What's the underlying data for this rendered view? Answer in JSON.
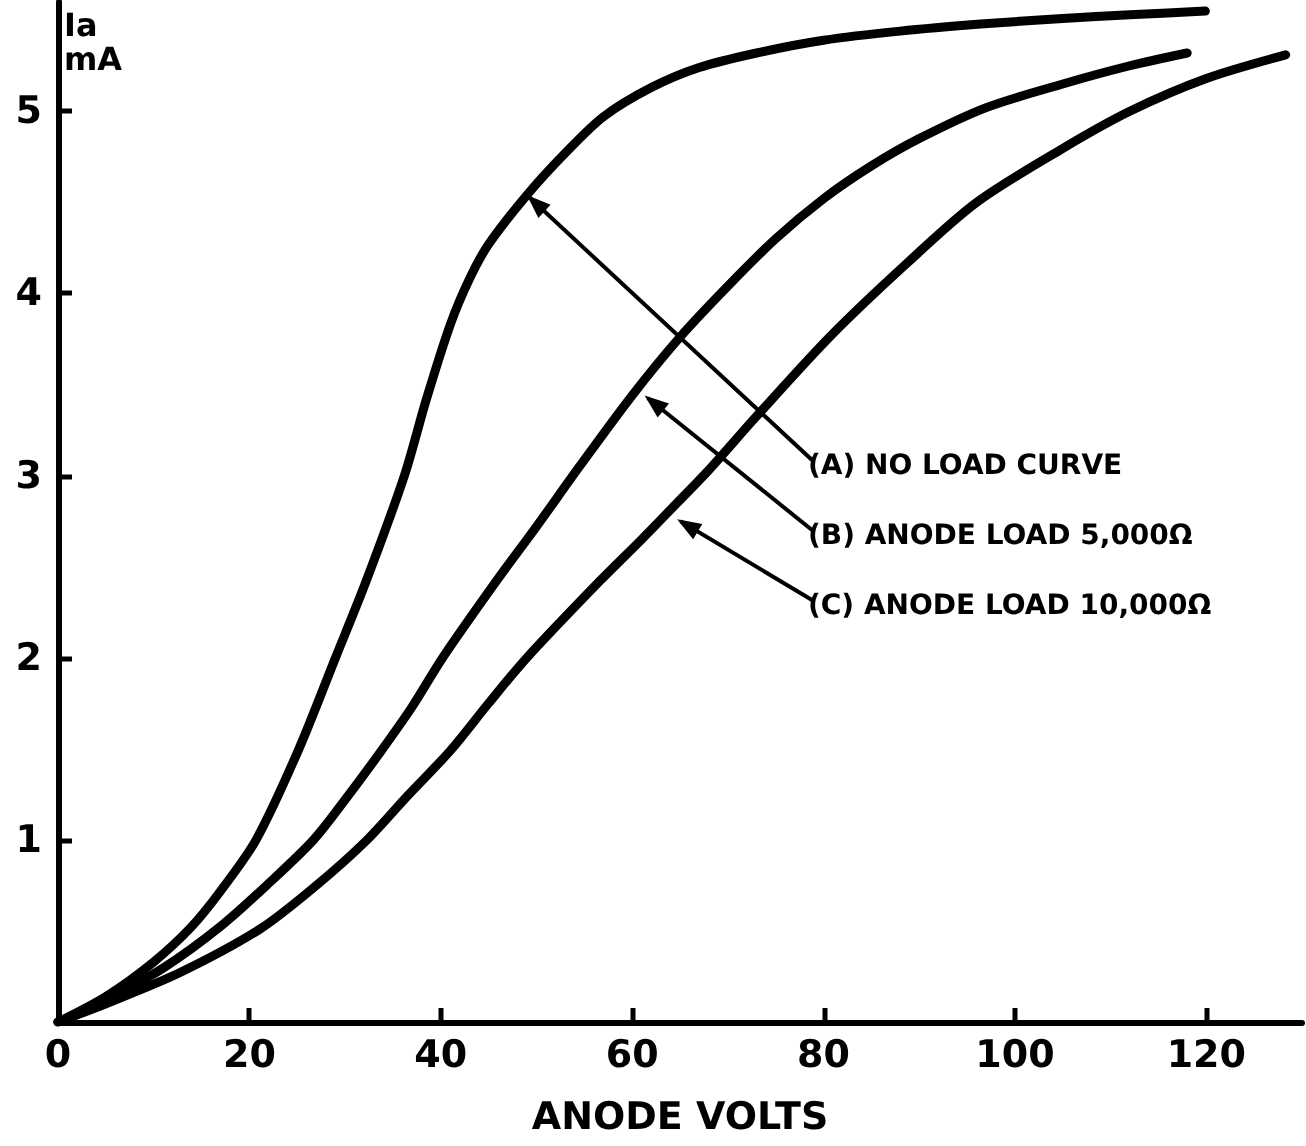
{
  "chart_data": {
    "type": "line",
    "xlabel": "ANODE VOLTS",
    "ylabel": "Ia mA",
    "xlim": [
      0,
      130
    ],
    "xticks": [
      0,
      20,
      40,
      60,
      80,
      100,
      120
    ],
    "ylim": [
      0,
      5.6
    ],
    "yticks": [
      1,
      2,
      3,
      4,
      5
    ],
    "marker": "none",
    "line_style": "solid",
    "series": [
      {
        "color": "#000000",
        "x": [
          0,
          5,
          10,
          13.9,
          17,
          20.7,
          25.1,
          29,
          32.2,
          36.2,
          38.5,
          41,
          43,
          45,
          49,
          53,
          57,
          62,
          67,
          73,
          80,
          88,
          96.8,
          105,
          112,
          119.9
        ],
        "values": [
          0,
          0.14,
          0.33,
          0.52,
          0.72,
          1.0,
          1.49,
          2.0,
          2.42,
          3.0,
          3.42,
          3.83,
          4.08,
          4.27,
          4.54,
          4.77,
          4.97,
          5.13,
          5.24,
          5.32,
          5.39,
          5.44,
          5.48,
          5.51,
          5.53,
          5.55
        ]
      },
      {
        "color": "#000000",
        "x": [
          0,
          5,
          11.1,
          17.1,
          22,
          26.7,
          30,
          33.8,
          37,
          40.2,
          45.8,
          50,
          54.5,
          60,
          65,
          70,
          75,
          80,
          85,
          90,
          97,
          105,
          112,
          118
        ],
        "values": [
          0,
          0.12,
          0.3,
          0.53,
          0.76,
          1.0,
          1.22,
          1.49,
          1.73,
          2.0,
          2.42,
          2.72,
          3.05,
          3.44,
          3.76,
          4.04,
          4.3,
          4.52,
          4.7,
          4.85,
          5.02,
          5.15,
          5.25,
          5.32
        ]
      },
      {
        "color": "#000000",
        "x": [
          0,
          5,
          12.7,
          21.1,
          27,
          32.3,
          36.5,
          41,
          45,
          49,
          56.6,
          61,
          64.7,
          68,
          72.9,
          80.8,
          88.8,
          96,
          104.8,
          112,
          120,
          128.3
        ],
        "values": [
          0,
          0.1,
          0.27,
          0.51,
          0.75,
          1.0,
          1.24,
          1.49,
          1.75,
          2.0,
          2.42,
          2.65,
          2.85,
          3.03,
          3.32,
          3.77,
          4.17,
          4.5,
          4.79,
          5.0,
          5.18,
          5.31
        ]
      }
    ],
    "annotations": [
      {
        "text": "(A) NO LOAD CURVE",
        "x": 49,
        "y": 4.54
      },
      {
        "text": "(B) ANODE LOAD 5,000Ω",
        "x": 61.3,
        "y": 3.44
      },
      {
        "text": "(C) ANODE LOAD 10,000Ω",
        "x": 64.7,
        "y": 2.76
      }
    ]
  }
}
